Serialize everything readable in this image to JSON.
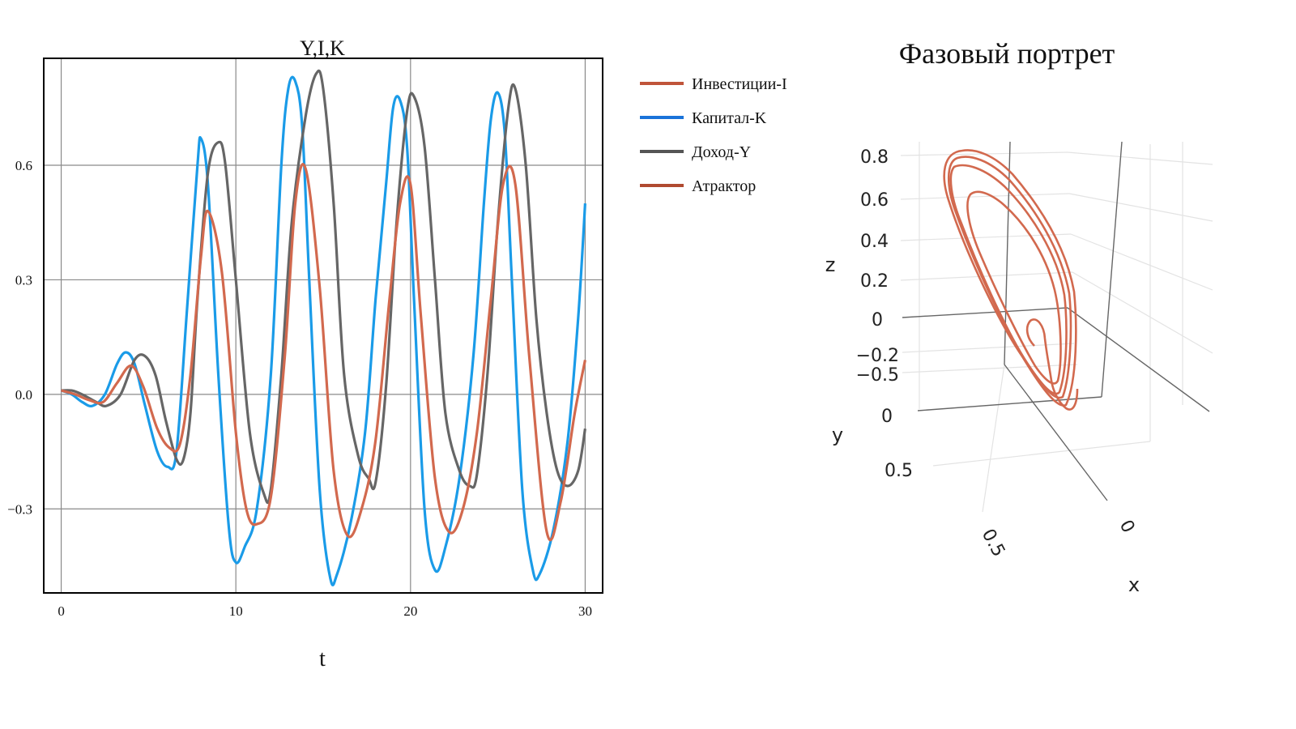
{
  "colors": {
    "investment": "#d2694e",
    "capital": "#1a9be8",
    "income": "#666666",
    "attractor": "#d2694e",
    "legend_investment": "#c0543a",
    "legend_capital": "#1a73d9",
    "legend_income": "#555555",
    "legend_attractor": "#b04a30"
  },
  "chart_data": [
    {
      "type": "line",
      "title": "Y,I,K",
      "xlabel": "t",
      "ylabel": "",
      "xlim": [
        -1,
        31
      ],
      "ylim": [
        -0.52,
        0.88
      ],
      "xticks": [
        0,
        10,
        20,
        30
      ],
      "xtick_labels": [
        "0",
        "10",
        "20",
        "30"
      ],
      "yticks": [
        -0.3,
        0.0,
        0.3,
        0.6
      ],
      "ytick_labels": [
        "−0.3",
        "0.0",
        "0.3",
        "0.6"
      ],
      "grid": true,
      "legend_position": "right",
      "legend": [
        "Инвестиции-I",
        "Капитал-K",
        "Доход-Y",
        "Атрактор"
      ],
      "series": [
        {
          "name": "Инвестиции-I",
          "x": [
            0,
            0.8,
            1.6,
            2.4,
            3.2,
            4.0,
            4.7,
            5.5,
            6.2,
            6.8,
            7.4,
            8.0,
            8.4,
            9.2,
            10.0,
            10.6,
            11.2,
            12.0,
            12.8,
            13.4,
            14.0,
            14.8,
            15.6,
            16.4,
            17.2,
            18.0,
            18.8,
            19.4,
            20.0,
            20.6,
            21.4,
            22.2,
            23.0,
            23.8,
            24.6,
            25.3,
            26.0,
            26.8,
            27.8,
            28.6,
            29.4,
            30.0
          ],
          "values": [
            0.01,
            0.0,
            -0.015,
            -0.02,
            0.03,
            0.075,
            0.02,
            -0.09,
            -0.14,
            -0.13,
            0.05,
            0.36,
            0.48,
            0.32,
            -0.1,
            -0.3,
            -0.34,
            -0.27,
            0.1,
            0.5,
            0.59,
            0.28,
            -0.2,
            -0.37,
            -0.3,
            -0.12,
            0.25,
            0.5,
            0.55,
            0.2,
            -0.22,
            -0.36,
            -0.3,
            -0.1,
            0.25,
            0.55,
            0.55,
            0.1,
            -0.36,
            -0.28,
            -0.05,
            0.09
          ]
        },
        {
          "name": "Капитал-K",
          "x": [
            0,
            0.6,
            1.2,
            1.8,
            2.5,
            3.2,
            3.7,
            4.2,
            4.8,
            5.5,
            6.1,
            6.6,
            7.2,
            7.8,
            8.0,
            8.4,
            9.0,
            9.6,
            10.0,
            10.5,
            11.2,
            12.0,
            12.6,
            13.0,
            13.4,
            13.8,
            14.2,
            14.8,
            15.4,
            15.8,
            16.6,
            17.4,
            18.0,
            18.6,
            19.0,
            19.4,
            19.8,
            20.2,
            20.8,
            21.4,
            22.0,
            22.8,
            23.6,
            24.2,
            24.6,
            25.0,
            25.4,
            25.8,
            26.4,
            27.0,
            27.4,
            28.2,
            29.0,
            29.6,
            30.0
          ],
          "values": [
            0.01,
            0.0,
            -0.02,
            -0.03,
            0.0,
            0.08,
            0.11,
            0.08,
            -0.03,
            -0.15,
            -0.19,
            -0.15,
            0.22,
            0.6,
            0.67,
            0.55,
            0.05,
            -0.35,
            -0.44,
            -0.4,
            -0.3,
            0.05,
            0.6,
            0.8,
            0.82,
            0.7,
            0.3,
            -0.25,
            -0.48,
            -0.47,
            -0.33,
            -0.1,
            0.25,
            0.55,
            0.75,
            0.77,
            0.65,
            0.25,
            -0.3,
            -0.46,
            -0.4,
            -0.22,
            0.1,
            0.5,
            0.72,
            0.79,
            0.68,
            0.3,
            -0.25,
            -0.46,
            -0.47,
            -0.35,
            -0.12,
            0.2,
            0.5
          ]
        },
        {
          "name": "Доход-Y",
          "x": [
            0,
            0.6,
            1.2,
            2.0,
            2.6,
            3.4,
            4.2,
            4.8,
            5.4,
            6.0,
            6.6,
            7.0,
            7.4,
            7.8,
            8.4,
            9.0,
            9.4,
            10.0,
            10.8,
            11.6,
            12.0,
            12.6,
            13.2,
            14.0,
            14.6,
            15.0,
            15.6,
            16.2,
            17.0,
            17.6,
            18.0,
            18.6,
            19.2,
            19.8,
            20.2,
            20.8,
            21.4,
            22.0,
            22.8,
            23.4,
            23.8,
            24.4,
            25.0,
            25.6,
            26.0,
            26.6,
            27.2,
            27.8,
            28.4,
            29.0,
            29.6,
            30.0
          ],
          "values": [
            0.01,
            0.01,
            0.0,
            -0.02,
            -0.03,
            0.0,
            0.09,
            0.1,
            0.05,
            -0.07,
            -0.17,
            -0.17,
            -0.05,
            0.25,
            0.58,
            0.66,
            0.6,
            0.3,
            -0.1,
            -0.26,
            -0.25,
            0.05,
            0.45,
            0.73,
            0.84,
            0.8,
            0.5,
            0.05,
            -0.16,
            -0.22,
            -0.23,
            0.02,
            0.45,
            0.74,
            0.78,
            0.65,
            0.3,
            -0.05,
            -0.2,
            -0.24,
            -0.21,
            0.05,
            0.45,
            0.75,
            0.8,
            0.6,
            0.2,
            -0.05,
            -0.2,
            -0.24,
            -0.2,
            -0.09
          ]
        }
      ]
    },
    {
      "type": "line",
      "title": "Фазовый портрет",
      "projection": "3d",
      "zlabel": "z",
      "ylabel": "y",
      "xlabel": "x",
      "ztick_labels": [
        "0.8",
        "0.6",
        "0.4",
        "0.2",
        "0",
        "−0.2"
      ],
      "ytick_labels": [
        "−0.5",
        "0",
        "0.5"
      ],
      "xtick_labels": [
        "0.5",
        "0"
      ],
      "series": [
        {
          "name": "Атрактор"
        }
      ]
    }
  ]
}
